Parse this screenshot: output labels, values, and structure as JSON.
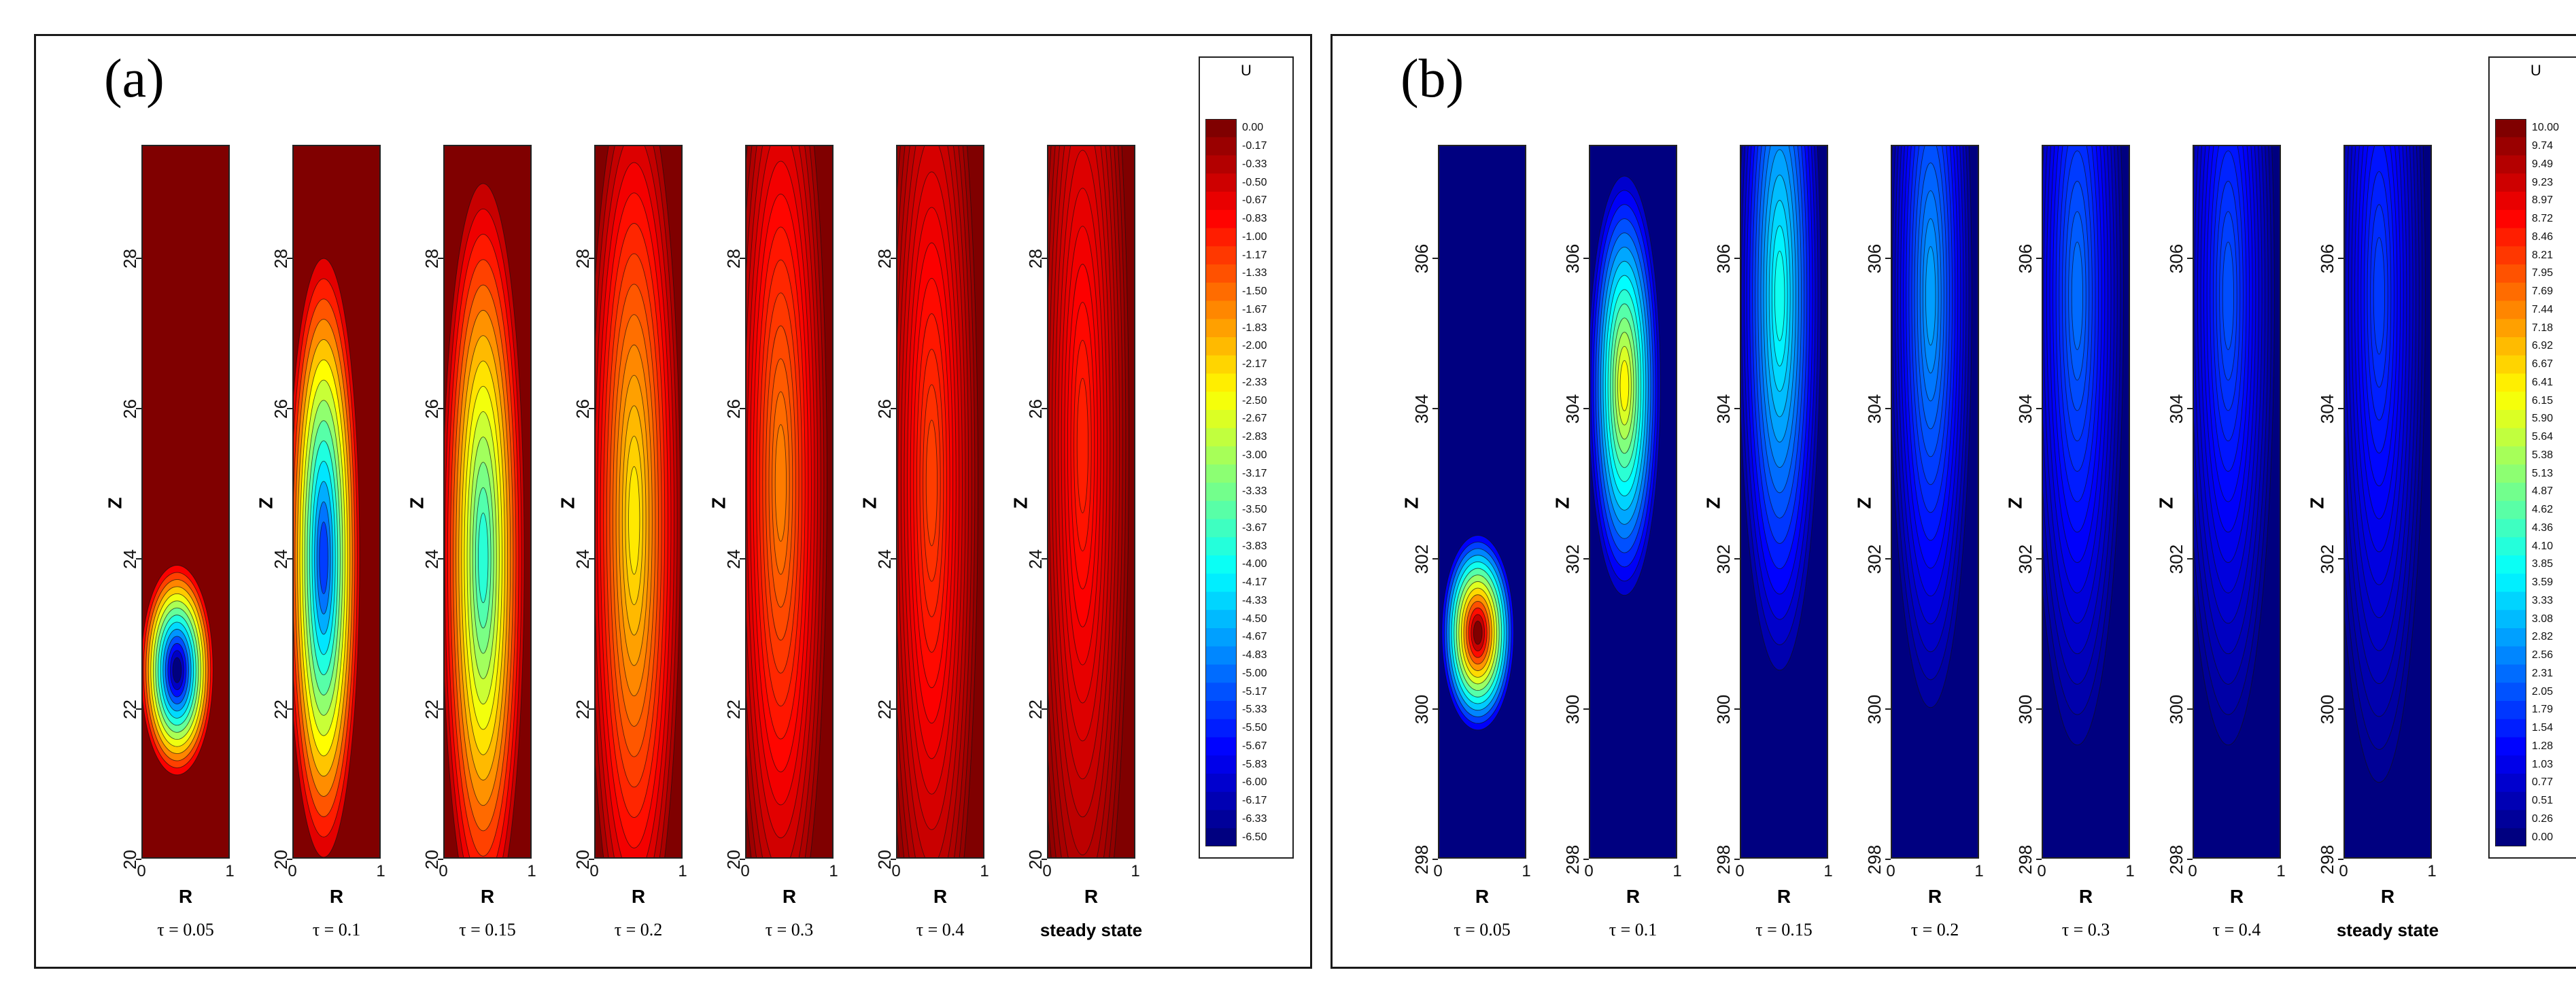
{
  "chart_data": [
    {
      "type": "heatmap",
      "panel_label": "(a)",
      "colorbar_title": "U",
      "colorbar_ticks": [
        "0.00",
        "-0.17",
        "-0.33",
        "-0.50",
        "-0.67",
        "-0.83",
        "-1.00",
        "-1.17",
        "-1.33",
        "-1.50",
        "-1.67",
        "-1.83",
        "-2.00",
        "-2.17",
        "-2.33",
        "-2.50",
        "-2.67",
        "-2.83",
        "-3.00",
        "-3.17",
        "-3.33",
        "-3.50",
        "-3.67",
        "-3.83",
        "-4.00",
        "-4.17",
        "-4.33",
        "-4.50",
        "-4.67",
        "-4.83",
        "-5.00",
        "-5.17",
        "-5.33",
        "-5.50",
        "-5.67",
        "-5.83",
        "-6.00",
        "-6.17",
        "-6.33",
        "-6.50"
      ],
      "colorbar_range": [
        -6.5,
        0.0
      ],
      "xlabel": "R",
      "ylabel": "Z",
      "xlim": [
        0,
        1
      ],
      "ylim": [
        20,
        29.5
      ],
      "xticks": [
        "0",
        "1"
      ],
      "yticks": [
        "20",
        "22",
        "24",
        "26",
        "28"
      ],
      "subplots": [
        {
          "label": "τ = 0.05",
          "peak": -6.5,
          "center_z": 22.5,
          "center_r": 0.4,
          "spread_z": 1.4,
          "spread_r": 0.35
        },
        {
          "label": "τ = 0.1",
          "peak": -5.3,
          "center_z": 24.0,
          "center_r": 0.35,
          "spread_z": 4.0,
          "spread_r": 0.35
        },
        {
          "label": "τ = 0.15",
          "peak": -3.8,
          "center_z": 24.0,
          "center_r": 0.45,
          "spread_z": 5.0,
          "spread_r": 0.4
        },
        {
          "label": "τ = 0.2",
          "peak": -2.3,
          "center_z": 24.5,
          "center_r": 0.45,
          "spread_z": 6.0,
          "spread_r": 0.45
        },
        {
          "label": "τ = 0.3",
          "peak": -1.6,
          "center_z": 25.0,
          "center_r": 0.4,
          "spread_z": 6.5,
          "spread_r": 0.45
        },
        {
          "label": "τ = 0.4",
          "peak": -1.2,
          "center_z": 25.0,
          "center_r": 0.4,
          "spread_z": 7.0,
          "spread_r": 0.45
        },
        {
          "label": "steady state",
          "peak": -1.0,
          "center_z": 25.5,
          "center_r": 0.4,
          "spread_z": 7.5,
          "spread_r": 0.45
        }
      ]
    },
    {
      "type": "heatmap",
      "panel_label": "(b)",
      "colorbar_title": "U",
      "colorbar_ticks": [
        "10.00",
        "9.74",
        "9.49",
        "9.23",
        "8.97",
        "8.72",
        "8.46",
        "8.21",
        "7.95",
        "7.69",
        "7.44",
        "7.18",
        "6.92",
        "6.67",
        "6.41",
        "6.15",
        "5.90",
        "5.64",
        "5.38",
        "5.13",
        "4.87",
        "4.62",
        "4.36",
        "4.10",
        "3.85",
        "3.59",
        "3.33",
        "3.08",
        "2.82",
        "2.56",
        "2.31",
        "2.05",
        "1.79",
        "1.54",
        "1.28",
        "1.03",
        "0.77",
        "0.51",
        "0.26",
        "0.00"
      ],
      "colorbar_range": [
        0.0,
        10.0
      ],
      "xlabel": "R",
      "ylabel": "Z",
      "xlim": [
        0,
        1
      ],
      "ylim": [
        298,
        307.5
      ],
      "xticks": [
        "0",
        "1"
      ],
      "yticks": [
        "298",
        "300",
        "302",
        "304",
        "306"
      ],
      "subplots": [
        {
          "label": "τ = 0.05",
          "peak": 10.0,
          "center_z": 301.0,
          "center_r": 0.45,
          "spread_z": 1.3,
          "spread_r": 0.35
        },
        {
          "label": "τ = 0.1",
          "peak": 6.3,
          "center_z": 304.3,
          "center_r": 0.4,
          "spread_z": 2.8,
          "spread_r": 0.35
        },
        {
          "label": "τ = 0.15",
          "peak": 3.9,
          "center_z": 305.5,
          "center_r": 0.45,
          "spread_z": 5.0,
          "spread_r": 0.4
        },
        {
          "label": "τ = 0.2",
          "peak": 2.8,
          "center_z": 305.5,
          "center_r": 0.45,
          "spread_z": 5.5,
          "spread_r": 0.4
        },
        {
          "label": "τ = 0.3",
          "peak": 2.3,
          "center_z": 305.5,
          "center_r": 0.4,
          "spread_z": 6.0,
          "spread_r": 0.45
        },
        {
          "label": "τ = 0.4",
          "peak": 2.0,
          "center_z": 305.5,
          "center_r": 0.4,
          "spread_z": 6.0,
          "spread_r": 0.45
        },
        {
          "label": "steady state",
          "peak": 1.8,
          "center_z": 305.5,
          "center_r": 0.4,
          "spread_z": 6.5,
          "spread_r": 0.45
        }
      ]
    }
  ]
}
